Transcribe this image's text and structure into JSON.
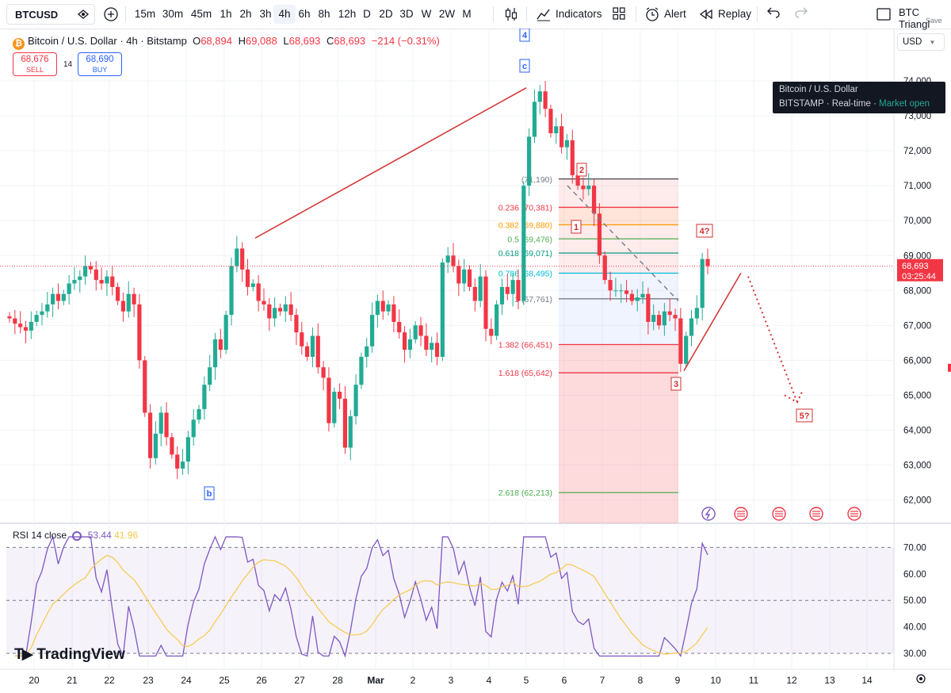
{
  "toolbar": {
    "symbol": "BTCUSD",
    "intervals": [
      "15m",
      "30m",
      "45m",
      "1h",
      "2h",
      "3h",
      "4h",
      "6h",
      "8h",
      "12h",
      "D",
      "2D",
      "3D",
      "W",
      "2W",
      "M"
    ],
    "active_interval": "4h",
    "indicators_label": "Indicators",
    "alert_label": "Alert",
    "replay_label": "Replay",
    "layout_name": "BTC Triangl",
    "save_label": "Save"
  },
  "legend": {
    "title": "Bitcoin / U.S. Dollar · 4h · Bitstamp",
    "o_label": "O",
    "o": "68,894",
    "h_label": "H",
    "h": "69,088",
    "l_label": "L",
    "l": "68,693",
    "c_label": "C",
    "c": "68,693",
    "change": "−214 (−0.31%)"
  },
  "trade": {
    "sell_price": "68,676",
    "sell_label": "SELL",
    "spread": "14",
    "buy_price": "68,690",
    "buy_label": "BUY"
  },
  "currency": "USD",
  "info": {
    "name": "Bitcoin / U.S. Dollar",
    "exchange": "BITSTAMP",
    "feed": "Real-time",
    "status": "Market open"
  },
  "price_label": {
    "price": "68,693",
    "countdown": "03:25:44"
  },
  "rsi": {
    "label": "RSI 14 close",
    "value": "53.44",
    "ma_value": "41.96"
  },
  "watermark": "TradingView",
  "colors": {
    "up": "#22ab94",
    "down": "#f23645",
    "rsi": "#7e57c2",
    "rsi_ma": "#f7c948",
    "fib_zone_red": "#f23645",
    "wave_line": "#d32f2f"
  },
  "chart_data": {
    "type": "candlestick",
    "y_ticks": [
      62000,
      63000,
      64000,
      65000,
      66000,
      67000,
      68000,
      69000,
      70000,
      71000,
      72000,
      73000,
      74000
    ],
    "ylim": [
      61350,
      75100
    ],
    "x_tick_labels": [
      "20",
      "21",
      "22",
      "23",
      "24",
      "25",
      "26",
      "27",
      "28",
      "Mar",
      "2",
      "3",
      "4",
      "5",
      "6",
      "7",
      "8",
      "9",
      "10",
      "11",
      "12",
      "13",
      "14"
    ],
    "candles_approx": [
      [
        67200,
        67050,
        66950,
        66850,
        67100,
        67300,
        67400,
        67600,
        67900,
        67700,
        67900,
        68200,
        68300,
        68400,
        68700,
        68600,
        68300,
        68200,
        68400,
        68100,
        67700,
        67400,
        67900,
        67600,
        66000,
        64500,
        63200,
        63900,
        64500,
        63800,
        63300,
        62900,
        63100,
        63800,
        64300,
        64600,
        65300,
        65800,
        66600,
        66300,
        67300,
        68700,
        69200,
        68600,
        68100,
        68200,
        67700,
        67600,
        67200,
        67500,
        67400,
        67600,
        67300,
        66800,
        66400,
        66100,
        66700,
        65800,
        65500,
        64200,
        65100,
        64900,
        63500,
        64400,
        65300,
        66100,
        66400,
        67300,
        67700,
        67400,
        67600,
        67100,
        66800,
        66300,
        66600,
        67000,
        66700,
        66300,
        66500,
        66100,
        68800,
        69000,
        68700,
        68200,
        68600,
        68100,
        67700,
        68400,
        66900,
        66700,
        67600,
        68100,
        67900,
        68300,
        67700,
        71000,
        72400,
        73400,
        73700,
        73200,
        72500,
        72700,
        72100,
        72300,
        71300,
        71000,
        70900,
        71000,
        70200,
        69000,
        68300,
        68000,
        68000,
        68000,
        67900,
        67700,
        67800,
        67900,
        67100,
        67300,
        67000,
        67400,
        67300,
        67200,
        65900,
        66700,
        67200,
        67500,
        68900,
        68700
      ]
    ],
    "fib_levels": [
      {
        "ratio": "0.236",
        "price": "70,381",
        "label": "0.236 (70,381)",
        "color": "#f23645"
      },
      {
        "ratio": "0.382",
        "price": "69,880",
        "label": "0.382 (69,880)",
        "color": "#ff9800"
      },
      {
        "ratio": "0.5",
        "price": "69,476",
        "label": "0.5 (69,476)",
        "color": "#4caf50"
      },
      {
        "ratio": "0.618",
        "price": "69,071",
        "label": "0.618 (69,071)",
        "color": "#089981"
      },
      {
        "ratio": "0.786",
        "price": "68,495",
        "label": "0.786 (68,495)",
        "color": "#00bcd4"
      },
      {
        "ratio": "1",
        "price": "67,761",
        "label": "1 (67,761)",
        "color": "#787b86"
      },
      {
        "ratio": "1.382",
        "price": "66,451",
        "label": "1.382 (66,451)",
        "color": "#f23645"
      },
      {
        "ratio": "1.618",
        "price": "65,642",
        "label": "1.618 (65,642)",
        "color": "#f23645"
      },
      {
        "ratio": "2.618",
        "price": "62,213",
        "label": "2.618 (62,213)",
        "color": "#4caf50"
      }
    ],
    "fib_top_label": "(71,190)",
    "wave_labels": [
      "4",
      "c",
      "b",
      "2",
      "1",
      "3",
      "4?",
      "5?"
    ],
    "rsi_ticks": [
      30,
      40,
      50,
      60,
      70
    ]
  }
}
